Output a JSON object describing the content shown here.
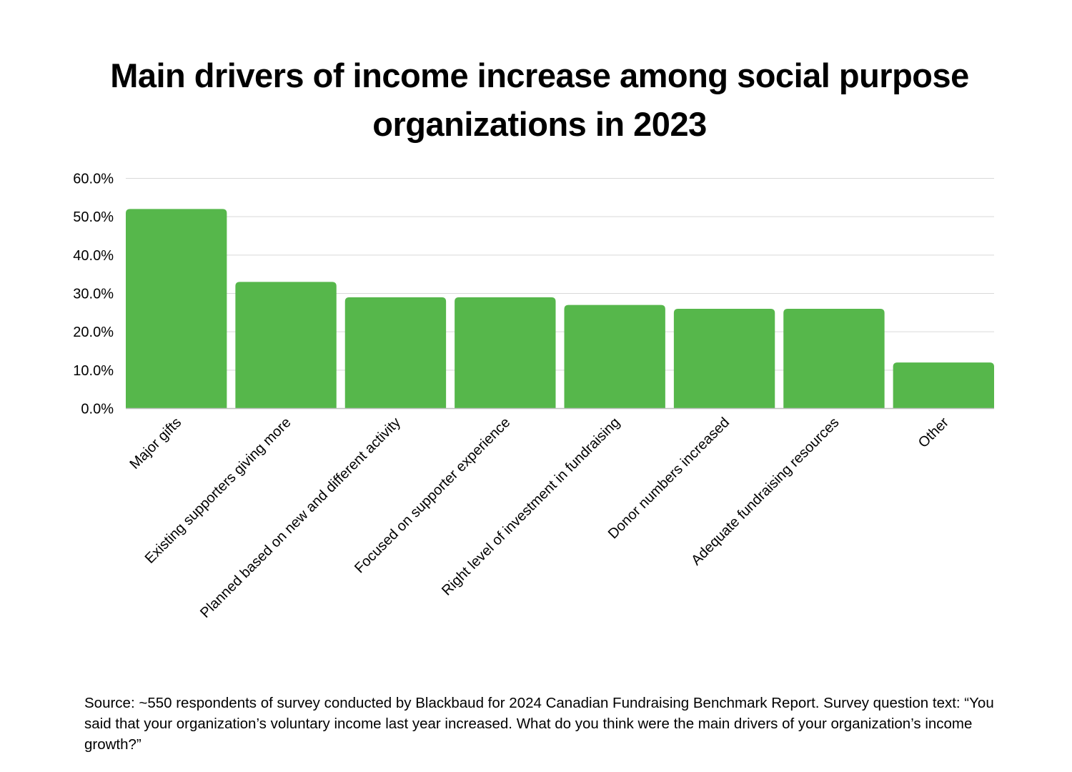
{
  "chart_data": {
    "type": "bar",
    "title": "Main drivers of income increase among social purpose organizations in 2023",
    "categories": [
      "Major gifts",
      "Existing supporters giving more",
      "Planned based on new and different activity",
      "Focused on supporter experience",
      "Right level of investment in fundraising",
      "Donor numbers increased",
      "Adequate fundraising resources",
      "Other"
    ],
    "values": [
      52,
      33,
      29,
      29,
      27,
      26,
      26,
      12
    ],
    "ylim": [
      0,
      60
    ],
    "yticks": [
      "0.0%",
      "10.0%",
      "20.0%",
      "30.0%",
      "40.0%",
      "50.0%",
      "60.0%"
    ],
    "xlabel": "",
    "ylabel": "",
    "grid": true,
    "bar_color": "#56b74b",
    "source": "Source: ~550 respondents of survey conducted by Blackbaud for 2024 Canadian Fundraising Benchmark Report. Survey question text: “You said that your organization’s voluntary income last year increased. What do you think were the main drivers of your organization’s income growth?”"
  }
}
